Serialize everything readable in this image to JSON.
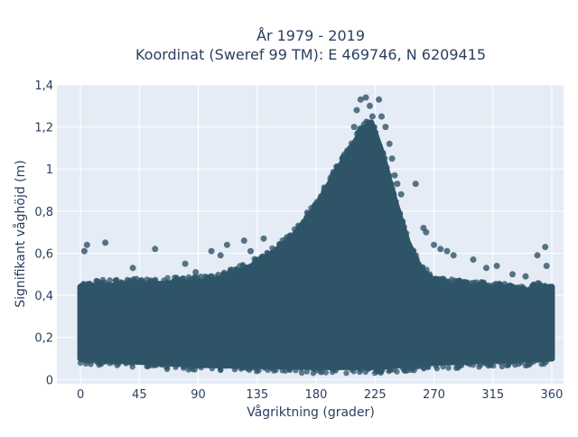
{
  "chart_data": {
    "type": "scatter",
    "title_line1": "År 1979 - 2019",
    "title_line2": "Koordinat (Sweref 99 TM): E 469746, N 6209415",
    "xlabel": "Vågriktning (grader)",
    "ylabel": "Signifikant våghöjd (m)",
    "xlim": [
      -18,
      369
    ],
    "ylim": [
      -0.02,
      1.4
    ],
    "xticks": [
      0,
      45,
      90,
      135,
      180,
      225,
      270,
      315,
      360
    ],
    "xtick_labels": [
      "0",
      "45",
      "90",
      "135",
      "180",
      "225",
      "270",
      "315",
      "360"
    ],
    "yticks": [
      0,
      0.2,
      0.4,
      0.6,
      0.8,
      1.0,
      1.2,
      1.4
    ],
    "ytick_labels": [
      "0",
      "0,2",
      "0,4",
      "0,6",
      "0,8",
      "1",
      "1,2",
      "1,4"
    ],
    "grid": true,
    "colors": {
      "marker": "#2f5468",
      "plot_bg": "#e5ecf6",
      "grid": "#ffffff",
      "text": "#2a3f5f"
    },
    "envelope_upper": {
      "x": [
        0,
        45,
        90,
        110,
        135,
        160,
        180,
        195,
        205,
        215,
        222,
        230,
        240,
        250,
        260,
        270,
        290,
        315,
        340,
        360
      ],
      "y": [
        0.44,
        0.45,
        0.46,
        0.48,
        0.55,
        0.66,
        0.82,
        0.98,
        1.08,
        1.18,
        1.22,
        1.08,
        0.85,
        0.65,
        0.52,
        0.46,
        0.44,
        0.43,
        0.42,
        0.44
      ]
    },
    "envelope_lower": {
      "x": [
        0,
        90,
        180,
        225,
        270,
        360
      ],
      "y": [
        0.1,
        0.07,
        0.06,
        0.06,
        0.08,
        0.1
      ]
    },
    "outliers": {
      "x": [
        3,
        5,
        19,
        40,
        57,
        80,
        88,
        100,
        107,
        112,
        125,
        130,
        140,
        160,
        170,
        200,
        206,
        209,
        211,
        214,
        218,
        221,
        223,
        228,
        230,
        233,
        236,
        238,
        240,
        242,
        245,
        256,
        262,
        264,
        270,
        275,
        280,
        285,
        300,
        310,
        318,
        330,
        340,
        349,
        355,
        356
      ],
      "y": [
        0.61,
        0.64,
        0.65,
        0.53,
        0.62,
        0.55,
        0.51,
        0.61,
        0.59,
        0.64,
        0.66,
        0.61,
        0.67,
        0.68,
        0.7,
        1.05,
        1.1,
        1.2,
        1.28,
        1.33,
        1.34,
        1.3,
        1.25,
        1.33,
        1.25,
        1.2,
        1.12,
        1.05,
        0.97,
        0.93,
        0.88,
        0.93,
        0.72,
        0.7,
        0.64,
        0.62,
        0.61,
        0.59,
        0.57,
        0.53,
        0.54,
        0.5,
        0.49,
        0.59,
        0.63,
        0.54
      ]
    }
  }
}
